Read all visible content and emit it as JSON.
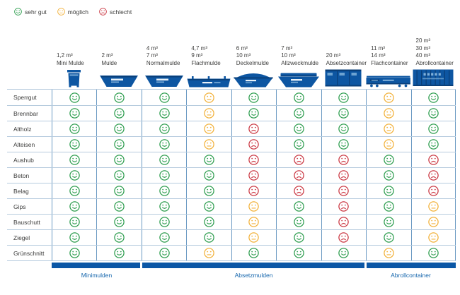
{
  "legend": {
    "items": [
      {
        "key": "good",
        "label": "sehr gut"
      },
      {
        "key": "possible",
        "label": "möglich"
      },
      {
        "key": "bad",
        "label": "schlecht"
      }
    ]
  },
  "colors": {
    "good": "#2f9e50",
    "possible": "#f2b23c",
    "bad": "#cb3a45",
    "container_blue": "#0d56a2",
    "container_dark": "#093f79",
    "container_light": "#7fb0d9",
    "container_white": "#e8f1f8",
    "grid_vertical": "#6b9ac3",
    "grid_horizontal": "#b6cbde",
    "footer_bar": "#0b57a6",
    "footer_text": "#1566ad",
    "text": "#3c3c3b"
  },
  "columns": [
    {
      "sizes": [
        "1,2 m³"
      ],
      "name": "Mini Mulde",
      "icon": "mini-bin-icon"
    },
    {
      "sizes": [
        "2 m³"
      ],
      "name": "Mulde",
      "icon": "skip-icon"
    },
    {
      "sizes": [
        "4 m³",
        "7 m³"
      ],
      "name": "Normalmulde",
      "icon": "skip-icon"
    },
    {
      "sizes": [
        "4,7 m³",
        "9 m³"
      ],
      "name": "Flachmulde",
      "icon": "flat-skip-icon"
    },
    {
      "sizes": [
        "6 m³",
        "10 m³"
      ],
      "name": "Deckelmulde",
      "icon": "dome-skip-icon"
    },
    {
      "sizes": [
        "7 m³",
        "10 m³"
      ],
      "name": "Allzweckmulde",
      "icon": "lidded-skip-icon"
    },
    {
      "sizes": [
        "20 m³"
      ],
      "name": "Absetzcontainer",
      "icon": "box-container-icon"
    },
    {
      "sizes": [
        "11 m³",
        "14 m³"
      ],
      "name": "Flachcontainer",
      "icon": "flat-container-icon"
    },
    {
      "sizes": [
        "20 m³",
        "30 m³",
        "40 m³"
      ],
      "name": "Abrollcontainer",
      "icon": "roll-container-icon"
    }
  ],
  "rows": [
    {
      "label": "Sperrgut",
      "ratings": [
        "good",
        "good",
        "good",
        "possible",
        "good",
        "good",
        "good",
        "possible",
        "good"
      ]
    },
    {
      "label": "Brennbar",
      "ratings": [
        "good",
        "good",
        "good",
        "possible",
        "good",
        "good",
        "good",
        "possible",
        "good"
      ]
    },
    {
      "label": "Altholz",
      "ratings": [
        "good",
        "good",
        "good",
        "possible",
        "bad",
        "good",
        "good",
        "possible",
        "good"
      ]
    },
    {
      "label": "Alteisen",
      "ratings": [
        "good",
        "good",
        "good",
        "possible",
        "bad",
        "good",
        "good",
        "possible",
        "good"
      ]
    },
    {
      "label": "Aushub",
      "ratings": [
        "good",
        "good",
        "good",
        "good",
        "bad",
        "bad",
        "bad",
        "good",
        "bad"
      ]
    },
    {
      "label": "Beton",
      "ratings": [
        "good",
        "good",
        "good",
        "good",
        "bad",
        "bad",
        "bad",
        "good",
        "bad"
      ]
    },
    {
      "label": "Belag",
      "ratings": [
        "good",
        "good",
        "good",
        "good",
        "bad",
        "bad",
        "bad",
        "good",
        "bad"
      ]
    },
    {
      "label": "Gips",
      "ratings": [
        "good",
        "good",
        "good",
        "good",
        "possible",
        "good",
        "bad",
        "good",
        "possible"
      ]
    },
    {
      "label": "Bauschutt",
      "ratings": [
        "good",
        "good",
        "good",
        "good",
        "possible",
        "good",
        "bad",
        "good",
        "possible"
      ]
    },
    {
      "label": "Ziegel",
      "ratings": [
        "good",
        "good",
        "good",
        "good",
        "possible",
        "good",
        "bad",
        "good",
        "possible"
      ]
    },
    {
      "label": "Grünschnitt",
      "ratings": [
        "good",
        "good",
        "good",
        "possible",
        "good",
        "good",
        "good",
        "possible",
        "good"
      ]
    }
  ],
  "groups": [
    {
      "label": "Minimulden"
    },
    {
      "label": "Absetzmulden"
    },
    {
      "label": "Abrollcontainer"
    }
  ],
  "chart_data": {
    "type": "table",
    "title": "",
    "legend": [
      "sehr gut",
      "möglich",
      "schlecht"
    ],
    "row_labels": [
      "Sperrgut",
      "Brennbar",
      "Altholz",
      "Alteisen",
      "Aushub",
      "Beton",
      "Belag",
      "Gips",
      "Bauschutt",
      "Ziegel",
      "Grünschnitt"
    ],
    "column_labels": [
      "1,2 m³ Mini Mulde",
      "2 m³ Mulde",
      "4 m³ / 7 m³ Normalmulde",
      "4,7 m³ / 9 m³ Flachmulde",
      "6 m³ / 10 m³ Deckelmulde",
      "7 m³ / 10 m³ Allzweckmulde",
      "20 m³ Absetzcontainer",
      "11 m³ / 14 m³ Flachcontainer",
      "20 m³ / 30 m³ / 40 m³ Abrollcontainer"
    ],
    "column_groups": [
      {
        "label": "Minimulden",
        "columns": [
          0,
          1
        ]
      },
      {
        "label": "Absetzmulden",
        "columns": [
          2,
          3,
          4,
          5,
          6
        ]
      },
      {
        "label": "Abrollcontainer",
        "columns": [
          7,
          8
        ]
      }
    ],
    "values": [
      [
        "sehr gut",
        "sehr gut",
        "sehr gut",
        "möglich",
        "sehr gut",
        "sehr gut",
        "sehr gut",
        "möglich",
        "sehr gut"
      ],
      [
        "sehr gut",
        "sehr gut",
        "sehr gut",
        "möglich",
        "sehr gut",
        "sehr gut",
        "sehr gut",
        "möglich",
        "sehr gut"
      ],
      [
        "sehr gut",
        "sehr gut",
        "sehr gut",
        "möglich",
        "schlecht",
        "sehr gut",
        "sehr gut",
        "möglich",
        "sehr gut"
      ],
      [
        "sehr gut",
        "sehr gut",
        "sehr gut",
        "möglich",
        "schlecht",
        "sehr gut",
        "sehr gut",
        "möglich",
        "sehr gut"
      ],
      [
        "sehr gut",
        "sehr gut",
        "sehr gut",
        "sehr gut",
        "schlecht",
        "schlecht",
        "schlecht",
        "sehr gut",
        "schlecht"
      ],
      [
        "sehr gut",
        "sehr gut",
        "sehr gut",
        "sehr gut",
        "schlecht",
        "schlecht",
        "schlecht",
        "sehr gut",
        "schlecht"
      ],
      [
        "sehr gut",
        "sehr gut",
        "sehr gut",
        "sehr gut",
        "schlecht",
        "schlecht",
        "schlecht",
        "sehr gut",
        "schlecht"
      ],
      [
        "sehr gut",
        "sehr gut",
        "sehr gut",
        "sehr gut",
        "möglich",
        "sehr gut",
        "schlecht",
        "sehr gut",
        "möglich"
      ],
      [
        "sehr gut",
        "sehr gut",
        "sehr gut",
        "sehr gut",
        "möglich",
        "sehr gut",
        "schlecht",
        "sehr gut",
        "möglich"
      ],
      [
        "sehr gut",
        "sehr gut",
        "sehr gut",
        "sehr gut",
        "möglich",
        "sehr gut",
        "schlecht",
        "sehr gut",
        "möglich"
      ],
      [
        "sehr gut",
        "sehr gut",
        "sehr gut",
        "möglich",
        "sehr gut",
        "sehr gut",
        "sehr gut",
        "möglich",
        "sehr gut"
      ]
    ]
  }
}
